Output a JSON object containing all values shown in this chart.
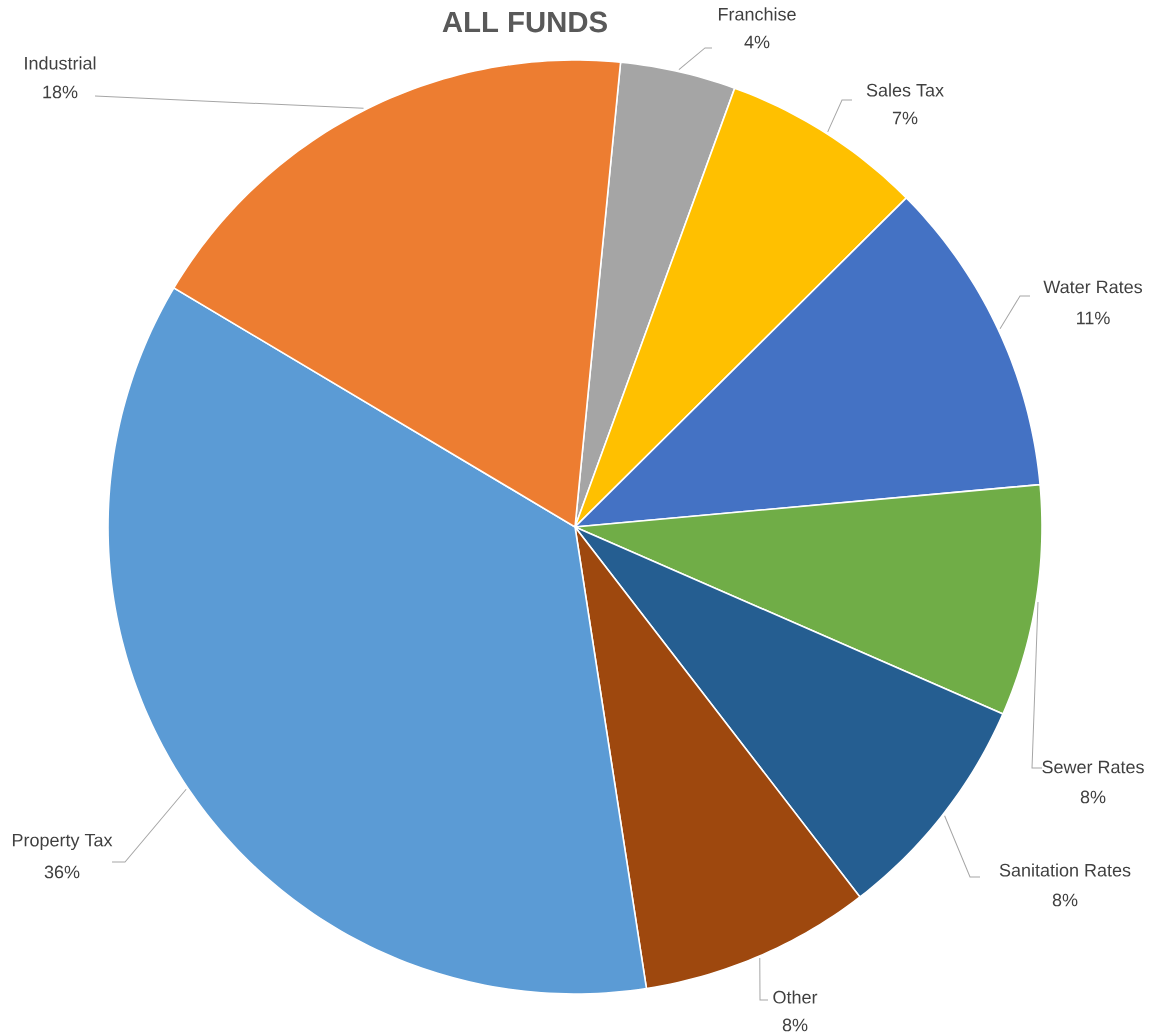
{
  "chart_data": {
    "type": "pie",
    "title": "ALL FUNDS",
    "categories": [
      "Franchise",
      "Sales Tax",
      "Water Rates",
      "Sewer Rates",
      "Sanitation Rates",
      "Other",
      "Property Tax",
      "Industrial"
    ],
    "values": [
      4,
      7,
      11,
      8,
      8,
      8,
      36,
      18
    ],
    "colors": [
      "#a5a5a5",
      "#ffc000",
      "#4472c4",
      "#70ad47",
      "#255e91",
      "#9e480e",
      "#5b9bd5",
      "#ed7d31"
    ],
    "value_labels": [
      "4%",
      "7%",
      "11%",
      "8%",
      "8%",
      "8%",
      "36%",
      "18%"
    ]
  }
}
